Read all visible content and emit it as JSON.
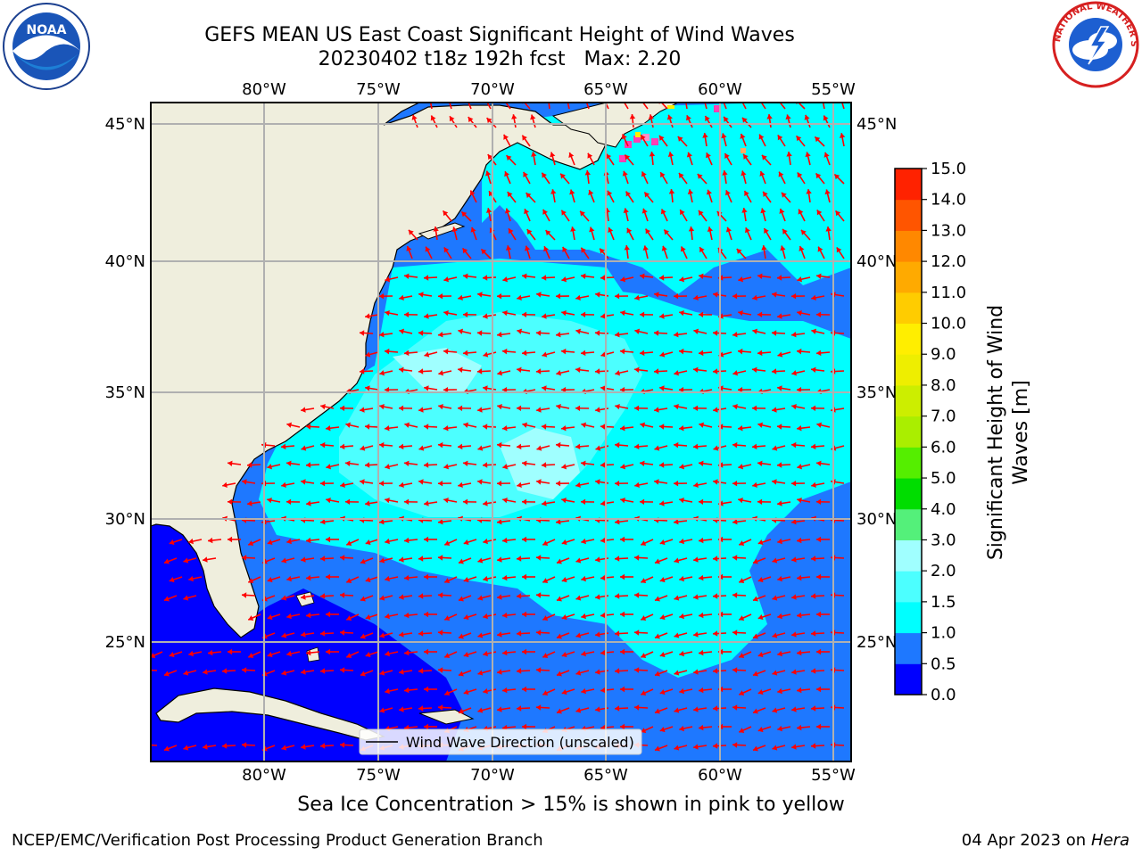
{
  "title": {
    "line1": "GEFS MEAN US East Coast Significant Height of Wind Waves",
    "line2": "20230402 t18z 192h fcst   Max: 2.20"
  },
  "logos": {
    "left": {
      "icon": "noaa-logo-icon",
      "text": "NOAA"
    },
    "right": {
      "icon": "national-weather-service-logo-icon",
      "text": "NATIONAL WEATHER SERVICE"
    }
  },
  "map": {
    "lon_labels": [
      "80°W",
      "75°W",
      "70°W",
      "65°W",
      "60°W",
      "55°W"
    ],
    "lat_labels": [
      "45°N",
      "40°N",
      "35°N",
      "30°N",
      "25°N"
    ],
    "legend_label": "Wind Wave Direction (unscaled)",
    "land_color": "#efeedd",
    "arrow_color": "#ff0000"
  },
  "colorbar": {
    "label": "Significant Height of Wind Waves [m]",
    "label_line1": "Significant Height of Wind",
    "label_line2": "Waves [m]",
    "ticks": [
      "0.0",
      "0.5",
      "1.0",
      "1.5",
      "2.0",
      "3.0",
      "4.0",
      "5.0",
      "6.0",
      "7.0",
      "8.0",
      "9.0",
      "10.0",
      "11.0",
      "12.0",
      "13.0",
      "14.0",
      "15.0"
    ],
    "colors": [
      "#0000ff",
      "#1e78ff",
      "#00ffff",
      "#4cffff",
      "#a0ffff",
      "#54f07a",
      "#00dd00",
      "#55ee00",
      "#aaee00",
      "#ccee00",
      "#eeee00",
      "#ffee00",
      "#ffcc00",
      "#ffaa00",
      "#ff8800",
      "#ff5500",
      "#ff2200",
      "#ff0000"
    ]
  },
  "ice_note": "Sea Ice Concentration > 15% is shown in pink to yellow",
  "footer": {
    "left": "NCEP/EMC/Verification Post Processing Product Generation Branch",
    "right_date": "04 Apr 2023 on ",
    "right_host": "Hera"
  }
}
